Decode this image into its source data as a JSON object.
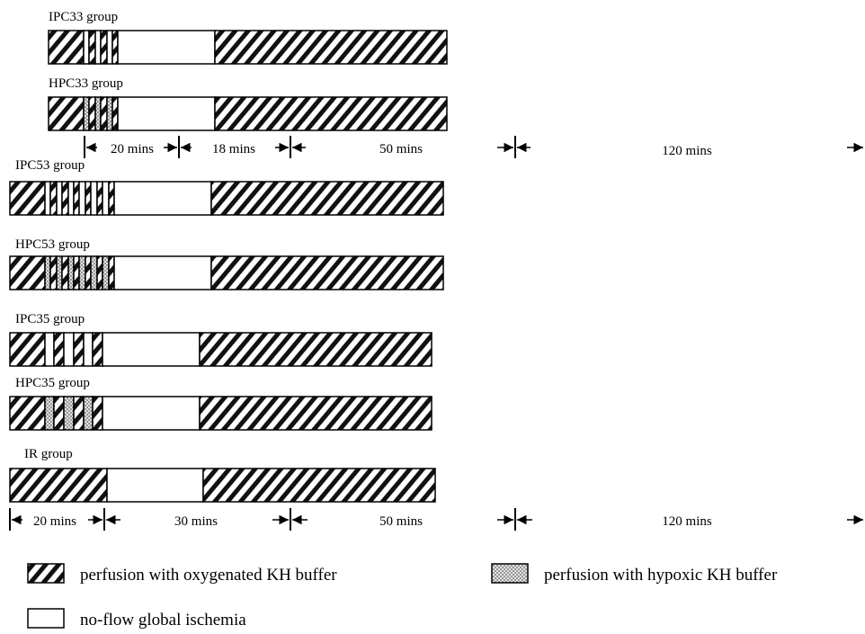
{
  "groups": [
    {
      "label": "IPC33 group",
      "segments": [
        {
          "kind": "oxygenated",
          "start": 20,
          "end": 38
        },
        {
          "kind": "ischemia",
          "start": 38,
          "end": 41
        },
        {
          "kind": "oxygenated",
          "start": 41,
          "end": 44
        },
        {
          "kind": "ischemia",
          "start": 44,
          "end": 47
        },
        {
          "kind": "oxygenated",
          "start": 47,
          "end": 50
        },
        {
          "kind": "ischemia",
          "start": 50,
          "end": 53
        },
        {
          "kind": "oxygenated",
          "start": 53,
          "end": 56
        },
        {
          "kind": "ischemia",
          "start": 56,
          "end": 106
        },
        {
          "kind": "oxygenated",
          "start": 106,
          "end": 226
        }
      ]
    },
    {
      "label": "HPC33 group",
      "segments": [
        {
          "kind": "oxygenated",
          "start": 20,
          "end": 38
        },
        {
          "kind": "hypoxic",
          "start": 38,
          "end": 41
        },
        {
          "kind": "oxygenated",
          "start": 41,
          "end": 44
        },
        {
          "kind": "hypoxic",
          "start": 44,
          "end": 47
        },
        {
          "kind": "oxygenated",
          "start": 47,
          "end": 50
        },
        {
          "kind": "hypoxic",
          "start": 50,
          "end": 53
        },
        {
          "kind": "oxygenated",
          "start": 53,
          "end": 56
        },
        {
          "kind": "ischemia",
          "start": 56,
          "end": 106
        },
        {
          "kind": "oxygenated",
          "start": 106,
          "end": 226
        }
      ]
    },
    {
      "label": "IPC53 group",
      "segments": [
        {
          "kind": "oxygenated",
          "start": 0,
          "end": 18
        },
        {
          "kind": "ischemia",
          "start": 18,
          "end": 21
        },
        {
          "kind": "oxygenated",
          "start": 21,
          "end": 24
        },
        {
          "kind": "ischemia",
          "start": 24,
          "end": 27
        },
        {
          "kind": "oxygenated",
          "start": 27,
          "end": 30
        },
        {
          "kind": "ischemia",
          "start": 30,
          "end": 33
        },
        {
          "kind": "oxygenated",
          "start": 33,
          "end": 36
        },
        {
          "kind": "ischemia",
          "start": 36,
          "end": 39
        },
        {
          "kind": "oxygenated",
          "start": 39,
          "end": 42
        },
        {
          "kind": "ischemia",
          "start": 42,
          "end": 45
        },
        {
          "kind": "oxygenated",
          "start": 45,
          "end": 48
        },
        {
          "kind": "ischemia",
          "start": 48,
          "end": 51
        },
        {
          "kind": "oxygenated",
          "start": 51,
          "end": 54
        },
        {
          "kind": "ischemia",
          "start": 54,
          "end": 104
        },
        {
          "kind": "oxygenated",
          "start": 104,
          "end": 224
        }
      ]
    },
    {
      "label": "HPC53 group",
      "segments": [
        {
          "kind": "oxygenated",
          "start": 0,
          "end": 18
        },
        {
          "kind": "hypoxic",
          "start": 18,
          "end": 21
        },
        {
          "kind": "oxygenated",
          "start": 21,
          "end": 24
        },
        {
          "kind": "hypoxic",
          "start": 24,
          "end": 27
        },
        {
          "kind": "oxygenated",
          "start": 27,
          "end": 30
        },
        {
          "kind": "hypoxic",
          "start": 30,
          "end": 33
        },
        {
          "kind": "oxygenated",
          "start": 33,
          "end": 36
        },
        {
          "kind": "hypoxic",
          "start": 36,
          "end": 39
        },
        {
          "kind": "oxygenated",
          "start": 39,
          "end": 42
        },
        {
          "kind": "hypoxic",
          "start": 42,
          "end": 45
        },
        {
          "kind": "oxygenated",
          "start": 45,
          "end": 48
        },
        {
          "kind": "hypoxic",
          "start": 48,
          "end": 51
        },
        {
          "kind": "oxygenated",
          "start": 51,
          "end": 54
        },
        {
          "kind": "ischemia",
          "start": 54,
          "end": 104
        },
        {
          "kind": "oxygenated",
          "start": 104,
          "end": 224
        }
      ]
    },
    {
      "label": "IPC35 group",
      "segments": [
        {
          "kind": "oxygenated",
          "start": 0,
          "end": 18
        },
        {
          "kind": "ischemia",
          "start": 18,
          "end": 23
        },
        {
          "kind": "oxygenated",
          "start": 23,
          "end": 28
        },
        {
          "kind": "ischemia",
          "start": 28,
          "end": 33
        },
        {
          "kind": "oxygenated",
          "start": 33,
          "end": 38
        },
        {
          "kind": "ischemia",
          "start": 38,
          "end": 43
        },
        {
          "kind": "oxygenated",
          "start": 43,
          "end": 48
        },
        {
          "kind": "ischemia",
          "start": 48,
          "end": 98
        },
        {
          "kind": "oxygenated",
          "start": 98,
          "end": 218
        }
      ]
    },
    {
      "label": "HPC35 group",
      "segments": [
        {
          "kind": "oxygenated",
          "start": 0,
          "end": 18
        },
        {
          "kind": "hypoxic",
          "start": 18,
          "end": 23
        },
        {
          "kind": "oxygenated",
          "start": 23,
          "end": 28
        },
        {
          "kind": "hypoxic",
          "start": 28,
          "end": 33
        },
        {
          "kind": "oxygenated",
          "start": 33,
          "end": 38
        },
        {
          "kind": "hypoxic",
          "start": 38,
          "end": 43
        },
        {
          "kind": "oxygenated",
          "start": 43,
          "end": 48
        },
        {
          "kind": "ischemia",
          "start": 48,
          "end": 98
        },
        {
          "kind": "oxygenated",
          "start": 98,
          "end": 218
        }
      ]
    },
    {
      "label": "IR group",
      "segments": [
        {
          "kind": "oxygenated",
          "start": 0,
          "end": 50
        },
        {
          "kind": "ischemia",
          "start": 50,
          "end": 100
        },
        {
          "kind": "oxygenated",
          "start": 100,
          "end": 220
        }
      ]
    }
  ],
  "durations_upper": [
    "20 mins",
    "18 mins",
    "50 mins",
    "120 mins"
  ],
  "durations_lower": [
    "20 mins",
    "30 mins",
    "50 mins",
    "120 mins"
  ],
  "legend": {
    "oxygenated": "perfusion with oxygenated KH buffer",
    "hypoxic": "perfusion with hypoxic KH buffer",
    "ischemia": "no-flow global ischemia"
  }
}
